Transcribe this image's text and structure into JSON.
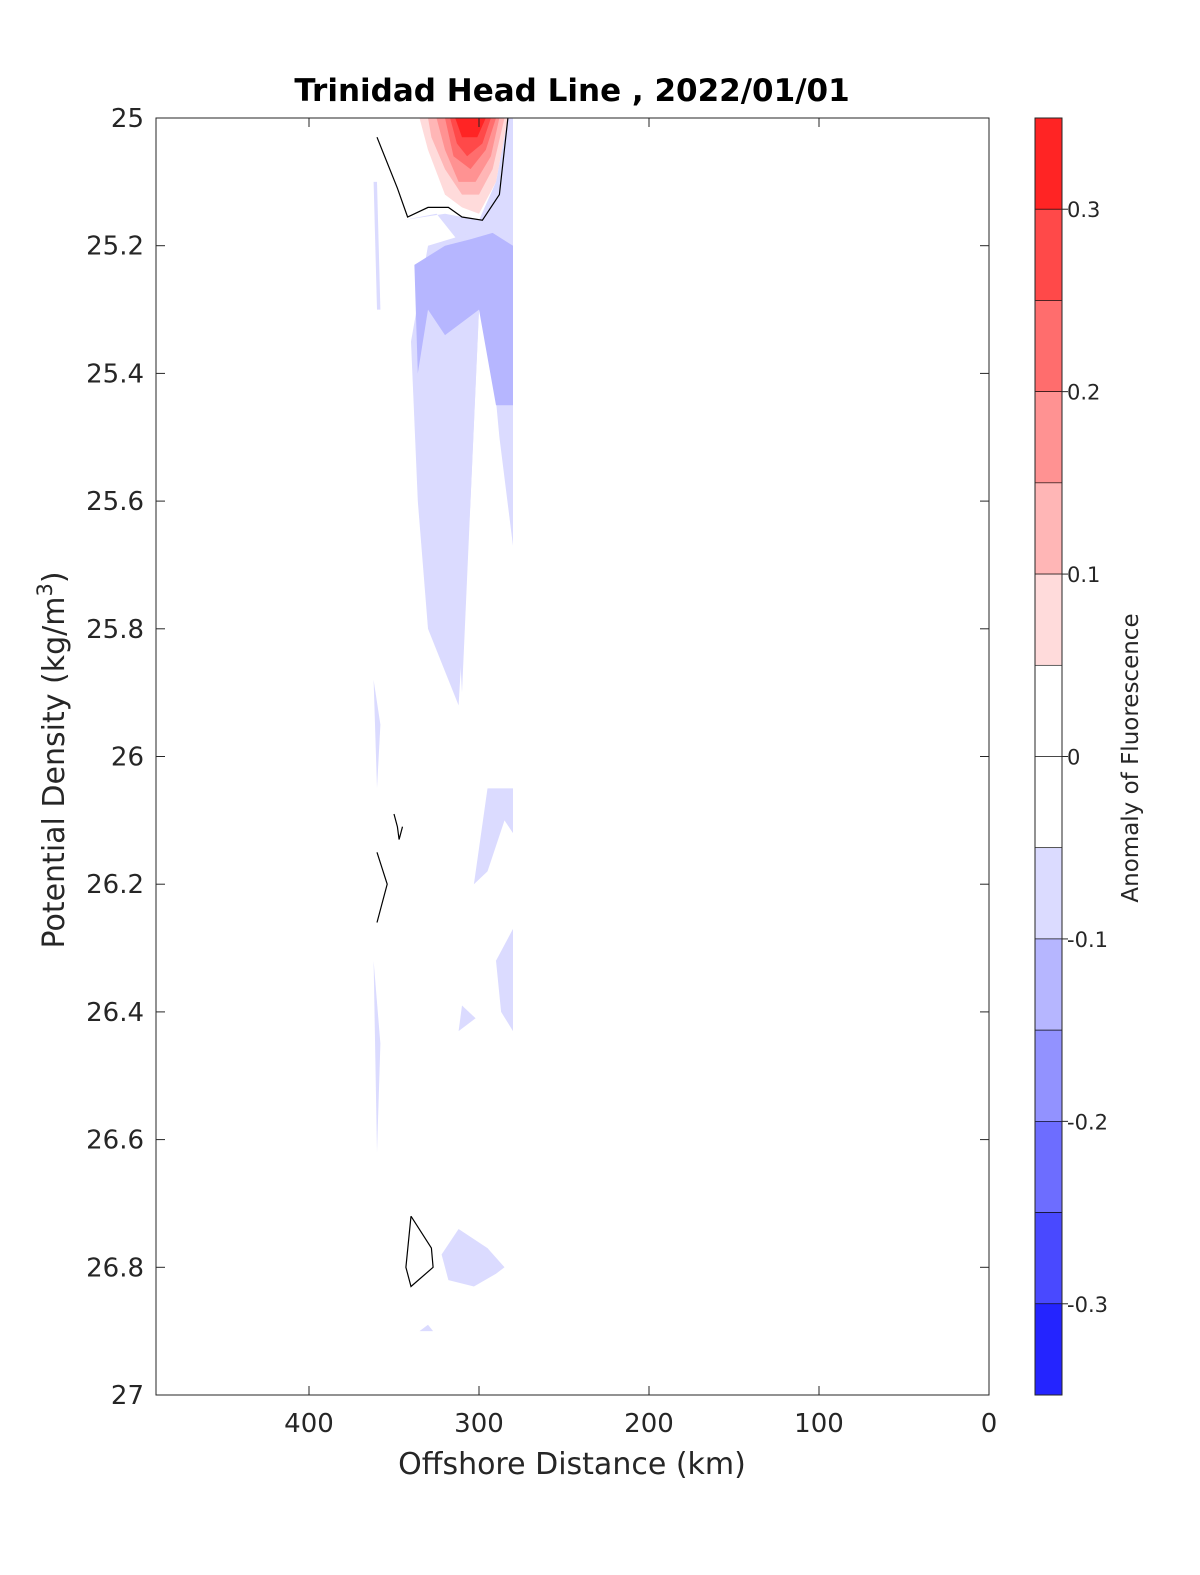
{
  "chart_data": {
    "type": "heatmap",
    "title": "Trinidad Head Line , 2022/01/01",
    "xlabel": "Offshore Distance (km)",
    "ylabel_main": "Potential Density (kg/m",
    "ylabel_sup": "3",
    "ylabel_close": ")",
    "xlim": [
      490,
      0
    ],
    "ylim": [
      25,
      27
    ],
    "x_reversed": true,
    "y_reversed": true,
    "xticks": [
      400,
      300,
      200,
      100,
      0
    ],
    "xtick_labels": [
      "400",
      "300",
      "200",
      "100",
      "0"
    ],
    "yticks": [
      25,
      25.2,
      25.4,
      25.6,
      25.8,
      26,
      26.2,
      26.4,
      26.6,
      26.8,
      27
    ],
    "ytick_labels": [
      "25",
      "25.2",
      "25.4",
      "25.6",
      "25.8",
      "26",
      "26.2",
      "26.4",
      "26.6",
      "26.8",
      "27"
    ],
    "colorbar": {
      "label": "Anomaly of Fluorescence",
      "clim": [
        -0.35,
        0.35
      ],
      "step": 0.05,
      "ticks": [
        0.3,
        0.2,
        0.1,
        0,
        -0.1,
        -0.2,
        -0.3
      ],
      "tick_labels": [
        "0.3",
        "0.2",
        "0.1",
        "0",
        "-0.1",
        "-0.2",
        "-0.3"
      ],
      "negative_color": "#0000ff",
      "positive_color": "#ff0000",
      "zero_color": "#ffffff"
    },
    "contour_regions": [
      {
        "level": -0.05,
        "points": [
          [
            360,
            25.1
          ],
          [
            358,
            25.3
          ],
          [
            360,
            25.3
          ],
          [
            362,
            25.1
          ]
        ]
      },
      {
        "level": -0.05,
        "points": [
          [
            345,
            25.16
          ],
          [
            320,
            25.15
          ],
          [
            300,
            25.16
          ],
          [
            290,
            25.1
          ],
          [
            283,
            25
          ],
          [
            280,
            25
          ],
          [
            280,
            25.67
          ],
          [
            288,
            25.5
          ],
          [
            295,
            25.3
          ],
          [
            300,
            25.2
          ],
          [
            310,
            25.3
          ],
          [
            318,
            25.5
          ],
          [
            310,
            25.9
          ],
          [
            305,
            25.6
          ],
          [
            300,
            25.3
          ],
          [
            310,
            25.2
          ],
          [
            325,
            25.15
          ],
          [
            345,
            25.16
          ]
        ]
      },
      {
        "level": -0.05,
        "points": [
          [
            305,
            25.18
          ],
          [
            330,
            25.2
          ],
          [
            340,
            25.35
          ],
          [
            336,
            25.6
          ],
          [
            330,
            25.8
          ],
          [
            312,
            25.92
          ],
          [
            305,
            25.6
          ],
          [
            300,
            25.3
          ],
          [
            305,
            25.18
          ]
        ]
      },
      {
        "level": -0.1,
        "points": [
          [
            292,
            25.18
          ],
          [
            305,
            25.19
          ],
          [
            320,
            25.2
          ],
          [
            338,
            25.23
          ],
          [
            336,
            25.4
          ],
          [
            330,
            25.3
          ],
          [
            320,
            25.34
          ],
          [
            300,
            25.3
          ],
          [
            290,
            25.45
          ],
          [
            280,
            25.45
          ],
          [
            280,
            25.2
          ],
          [
            292,
            25.18
          ]
        ]
      },
      {
        "level": -0.05,
        "points": [
          [
            362,
            25.88
          ],
          [
            360,
            26.05
          ],
          [
            358,
            25.95
          ]
        ]
      },
      {
        "level": -0.05,
        "points": [
          [
            280,
            26.05
          ],
          [
            295,
            26.05
          ],
          [
            303,
            26.2
          ],
          [
            295,
            26.18
          ],
          [
            285,
            26.1
          ],
          [
            280,
            26.12
          ]
        ]
      },
      {
        "level": -0.05,
        "points": [
          [
            280,
            26.27
          ],
          [
            290,
            26.32
          ],
          [
            287,
            26.4
          ],
          [
            280,
            26.43
          ]
        ]
      },
      {
        "level": -0.05,
        "points": [
          [
            362,
            26.32
          ],
          [
            360,
            26.62
          ],
          [
            358,
            26.45
          ]
        ]
      },
      {
        "level": -0.05,
        "points": [
          [
            310,
            26.39
          ],
          [
            302,
            26.41
          ],
          [
            312,
            26.43
          ]
        ]
      },
      {
        "level": -0.05,
        "points": [
          [
            312,
            26.74
          ],
          [
            295,
            26.77
          ],
          [
            285,
            26.8
          ],
          [
            290,
            26.81
          ],
          [
            303,
            26.83
          ],
          [
            318,
            26.82
          ],
          [
            322,
            26.78
          ],
          [
            312,
            26.74
          ]
        ]
      },
      {
        "level": -0.05,
        "points": [
          [
            327,
            26.9
          ],
          [
            335,
            26.9
          ],
          [
            330,
            26.89
          ]
        ]
      },
      {
        "level": 0.05,
        "points": [
          [
            335,
            25
          ],
          [
            283,
            25
          ],
          [
            290,
            25.1
          ],
          [
            300,
            25.15
          ],
          [
            310,
            25.14
          ],
          [
            320,
            25.12
          ],
          [
            330,
            25.05
          ],
          [
            335,
            25
          ]
        ]
      },
      {
        "level": 0.1,
        "points": [
          [
            330,
            25
          ],
          [
            285,
            25
          ],
          [
            292,
            25.08
          ],
          [
            300,
            25.12
          ],
          [
            310,
            25.12
          ],
          [
            320,
            25.08
          ],
          [
            328,
            25.03
          ]
        ]
      },
      {
        "level": 0.15,
        "points": [
          [
            325,
            25
          ],
          [
            288,
            25
          ],
          [
            293,
            25.06
          ],
          [
            302,
            25.1
          ],
          [
            312,
            25.1
          ],
          [
            320,
            25.05
          ]
        ]
      },
      {
        "level": 0.2,
        "points": [
          [
            320,
            25
          ],
          [
            290,
            25
          ],
          [
            296,
            25.05
          ],
          [
            305,
            25.08
          ],
          [
            315,
            25.06
          ]
        ]
      },
      {
        "level": 0.25,
        "points": [
          [
            317,
            25
          ],
          [
            293,
            25
          ],
          [
            298,
            25.04
          ],
          [
            307,
            25.06
          ],
          [
            313,
            25.04
          ]
        ]
      },
      {
        "level": 0.3,
        "points": [
          [
            314,
            25
          ],
          [
            296,
            25
          ],
          [
            301,
            25.03
          ],
          [
            310,
            25.03
          ]
        ]
      }
    ],
    "contour_lines": [
      {
        "level": 0,
        "points": [
          [
            360,
            25.03
          ],
          [
            348,
            25.11
          ],
          [
            342,
            25.155
          ],
          [
            330,
            25.14
          ],
          [
            318,
            25.14
          ],
          [
            310,
            25.155
          ],
          [
            298,
            25.16
          ],
          [
            288,
            25.12
          ],
          [
            283,
            25
          ]
        ]
      },
      {
        "level": 0,
        "points": [
          [
            350,
            26.09
          ],
          [
            348,
            26.11
          ],
          [
            347,
            26.13
          ],
          [
            345,
            26.11
          ]
        ]
      },
      {
        "level": 0,
        "points": [
          [
            360,
            26.15
          ],
          [
            354,
            26.2
          ],
          [
            360,
            26.26
          ]
        ]
      },
      {
        "level": 0,
        "points": [
          [
            340,
            26.72
          ],
          [
            343,
            26.8
          ],
          [
            340,
            26.83
          ],
          [
            327,
            26.8
          ],
          [
            328,
            26.77
          ],
          [
            340,
            26.72
          ]
        ]
      }
    ]
  }
}
